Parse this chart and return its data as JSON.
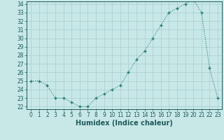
{
  "x": [
    0,
    1,
    2,
    3,
    4,
    5,
    6,
    7,
    8,
    9,
    10,
    11,
    12,
    13,
    14,
    15,
    16,
    17,
    18,
    19,
    20,
    21,
    22,
    23
  ],
  "y": [
    25.0,
    25.0,
    24.5,
    23.0,
    23.0,
    22.5,
    22.0,
    22.0,
    23.0,
    23.5,
    24.0,
    24.5,
    26.0,
    27.5,
    28.5,
    30.0,
    31.5,
    33.0,
    33.5,
    34.0,
    34.5,
    33.0,
    26.5,
    23.0
  ],
  "ylim_min": 22,
  "ylim_max": 34,
  "ytick_min": 22,
  "ytick_max": 34,
  "xlim_min": -0.5,
  "xlim_max": 23.5,
  "xlabel": "Humidex (Indice chaleur)",
  "line_color": "#1f7a6e",
  "bg_color": "#c8e8e8",
  "grid_color": "#a8cccc",
  "tick_color": "#1f5a5a",
  "label_color": "#1f5a5a",
  "spine_color": "#1f5a5a",
  "tick_fontsize": 5.5,
  "xlabel_fontsize": 7.0
}
